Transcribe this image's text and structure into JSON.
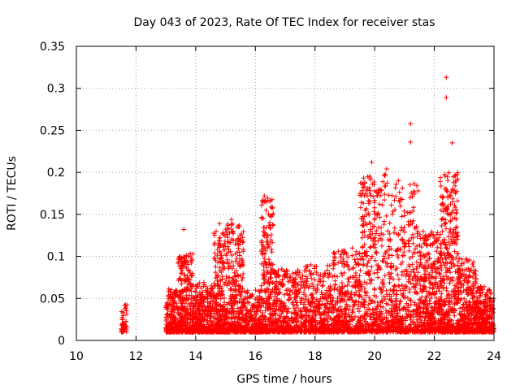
{
  "chart_data": {
    "type": "scatter",
    "title": "Day 043 of 2023, Rate Of TEC Index for receiver stas",
    "xlabel": "GPS time / hours",
    "ylabel": "ROTI / TECUs",
    "xlim": [
      10,
      24
    ],
    "ylim": [
      0,
      0.35
    ],
    "xticks": [
      10,
      12,
      14,
      16,
      18,
      20,
      22,
      24
    ],
    "yticks": [
      0,
      0.05,
      0.1,
      0.15,
      0.2,
      0.25,
      0.3,
      0.35
    ],
    "xtick_labels": [
      "10",
      "12",
      "14",
      "16",
      "18",
      "20",
      "22",
      "24"
    ],
    "ytick_labels": [
      "0",
      "0.05",
      "0.1",
      "0.15",
      "0.2",
      "0.25",
      "0.3",
      "0.35"
    ],
    "grid": true,
    "marker": "+",
    "color": "#ff0000",
    "notable_points": [
      {
        "x": 22.4,
        "y": 0.313
      },
      {
        "x": 22.4,
        "y": 0.289
      },
      {
        "x": 21.2,
        "y": 0.258
      },
      {
        "x": 21.2,
        "y": 0.236
      },
      {
        "x": 22.6,
        "y": 0.235
      },
      {
        "x": 20.4,
        "y": 0.204
      },
      {
        "x": 19.9,
        "y": 0.212
      },
      {
        "x": 16.3,
        "y": 0.172
      },
      {
        "x": 13.6,
        "y": 0.132
      },
      {
        "x": 15.2,
        "y": 0.144
      },
      {
        "x": 14.8,
        "y": 0.139
      }
    ],
    "clusters": [
      {
        "x_start": 11.5,
        "x_end": 11.7,
        "y_min": 0.01,
        "y_max": 0.048,
        "count": 40
      },
      {
        "x_start": 13.0,
        "x_end": 13.4,
        "y_min": 0.01,
        "y_max": 0.062,
        "count": 200
      },
      {
        "x_start": 13.4,
        "x_end": 13.9,
        "y_min": 0.01,
        "y_max": 0.105,
        "count": 320
      },
      {
        "x_start": 13.9,
        "x_end": 14.6,
        "y_min": 0.01,
        "y_max": 0.07,
        "count": 320
      },
      {
        "x_start": 14.6,
        "x_end": 15.0,
        "y_min": 0.01,
        "y_max": 0.13,
        "count": 260
      },
      {
        "x_start": 15.0,
        "x_end": 15.6,
        "y_min": 0.01,
        "y_max": 0.14,
        "count": 320
      },
      {
        "x_start": 15.6,
        "x_end": 16.2,
        "y_min": 0.01,
        "y_max": 0.06,
        "count": 240
      },
      {
        "x_start": 16.2,
        "x_end": 16.6,
        "y_min": 0.01,
        "y_max": 0.17,
        "count": 260
      },
      {
        "x_start": 16.6,
        "x_end": 17.5,
        "y_min": 0.01,
        "y_max": 0.085,
        "count": 360
      },
      {
        "x_start": 17.5,
        "x_end": 18.5,
        "y_min": 0.01,
        "y_max": 0.09,
        "count": 380
      },
      {
        "x_start": 18.5,
        "x_end": 19.5,
        "y_min": 0.01,
        "y_max": 0.11,
        "count": 400
      },
      {
        "x_start": 19.5,
        "x_end": 20.5,
        "y_min": 0.01,
        "y_max": 0.2,
        "count": 460
      },
      {
        "x_start": 20.5,
        "x_end": 21.5,
        "y_min": 0.01,
        "y_max": 0.19,
        "count": 440
      },
      {
        "x_start": 21.5,
        "x_end": 22.2,
        "y_min": 0.01,
        "y_max": 0.13,
        "count": 380
      },
      {
        "x_start": 22.2,
        "x_end": 22.8,
        "y_min": 0.01,
        "y_max": 0.2,
        "count": 420
      },
      {
        "x_start": 22.8,
        "x_end": 23.4,
        "y_min": 0.01,
        "y_max": 0.1,
        "count": 320
      },
      {
        "x_start": 23.4,
        "x_end": 24.0,
        "y_min": 0.01,
        "y_max": 0.065,
        "count": 300
      }
    ]
  }
}
